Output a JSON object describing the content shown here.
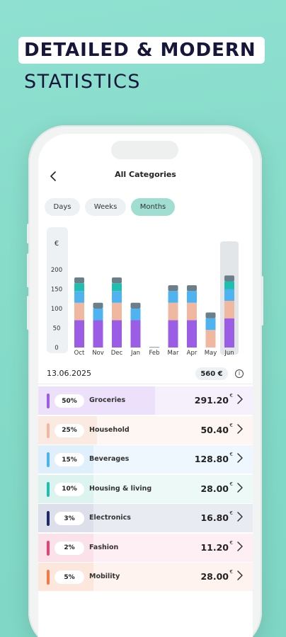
{
  "headline": {
    "line1": "DETAILED & MODERN",
    "line2": "STATISTICS"
  },
  "screen": {
    "title": "All Categories",
    "back_icon": "chevron-left-icon",
    "tabs": [
      {
        "label": "Days",
        "active": false
      },
      {
        "label": "Weeks",
        "active": false
      },
      {
        "label": "Months",
        "active": true
      }
    ]
  },
  "chart_data": {
    "type": "bar",
    "stacked": true,
    "y_unit_label": "€",
    "ylim": [
      0,
      200
    ],
    "yticks": [
      0,
      50,
      100,
      150,
      200
    ],
    "categories": [
      "Oct",
      "Nov",
      "Dec",
      "Jan",
      "Feb",
      "Mar",
      "Apr",
      "May",
      "Jun"
    ],
    "highlighted_category": "Jun",
    "series": [
      {
        "color": "#9b5de5",
        "values": [
          70,
          70,
          70,
          70,
          0,
          70,
          70,
          0,
          75
        ]
      },
      {
        "color": "#f0b8a0",
        "values": [
          45,
          0,
          45,
          0,
          0,
          45,
          45,
          45,
          45
        ]
      },
      {
        "color": "#4fb3f0",
        "values": [
          30,
          30,
          30,
          30,
          0,
          30,
          30,
          30,
          30
        ]
      },
      {
        "color": "#1fbfb0",
        "values": [
          20,
          0,
          20,
          0,
          0,
          0,
          0,
          0,
          20
        ]
      },
      {
        "color": "#6a7f8a",
        "values": [
          15,
          15,
          15,
          15,
          0,
          15,
          15,
          15,
          15
        ]
      }
    ]
  },
  "summary": {
    "date": "13.06.2025",
    "total": "560 €",
    "info_icon": "info-icon"
  },
  "categories": [
    {
      "pct": "50%",
      "name": "Groceries",
      "amount": "291.20",
      "currency": "€",
      "color": "#9b5de5",
      "bg": "#f6f0fd",
      "fill_color": "#ece0fb",
      "share": 0.5
    },
    {
      "pct": "25%",
      "name": "Household",
      "amount": "50.40",
      "currency": "€",
      "color": "#f0b8a0",
      "bg": "#fdf6f2",
      "fill_color": "#fbeae2",
      "share": 0.25
    },
    {
      "pct": "15%",
      "name": "Beverages",
      "amount": "128.80",
      "currency": "€",
      "color": "#4fb3f0",
      "bg": "#eef7fd",
      "fill_color": "#dff0fc",
      "share": 0.15
    },
    {
      "pct": "10%",
      "name": "Housing & living",
      "amount": "28.00",
      "currency": "€",
      "color": "#1fbfb0",
      "bg": "#edf9f7",
      "fill_color": "#dcf3ef",
      "share": 0.1
    },
    {
      "pct": "3%",
      "name": "Electronics",
      "amount": "16.80",
      "currency": "€",
      "color": "#1c2a6a",
      "bg": "#e9ebf2",
      "fill_color": "#dde0ea",
      "share": 0.03
    },
    {
      "pct": "2%",
      "name": "Fashion",
      "amount": "11.20",
      "currency": "€",
      "color": "#e0457a",
      "bg": "#fdeff3",
      "fill_color": "#fbe2ea",
      "share": 0.02
    },
    {
      "pct": "5%",
      "name": "Mobility",
      "amount": "28.00",
      "currency": "€",
      "color": "#f07a4a",
      "bg": "#fef3ee",
      "fill_color": "#fde6dc",
      "share": 0.05
    }
  ],
  "row_chevron_icon": "chevron-right-icon"
}
